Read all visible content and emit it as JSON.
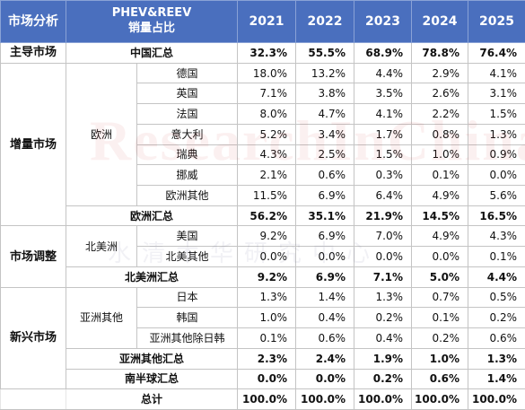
{
  "header": {
    "market_analysis": "市场分析",
    "phev_reev_title": "PHEV&REEV",
    "share_title": "销量占比",
    "years": [
      "2021",
      "2022",
      "2023",
      "2024",
      "2025"
    ]
  },
  "groups": {
    "main": "主导市场",
    "growth": "增量市场",
    "adjust": "市场调整",
    "emerging": "新兴市场"
  },
  "subgroups": {
    "europe": "欧洲",
    "north_america": "北美洲",
    "asia_other": "亚洲其他"
  },
  "rows": {
    "china_total": {
      "label": "中国汇总",
      "values": [
        "32.3%",
        "55.5%",
        "68.9%",
        "78.8%",
        "76.4%"
      ]
    },
    "germany": {
      "label": "德国",
      "values": [
        "18.0%",
        "13.2%",
        "4.4%",
        "2.9%",
        "4.1%"
      ]
    },
    "uk": {
      "label": "英国",
      "values": [
        "7.1%",
        "3.8%",
        "3.5%",
        "2.6%",
        "3.1%"
      ]
    },
    "france": {
      "label": "法国",
      "values": [
        "8.0%",
        "4.7%",
        "4.1%",
        "2.2%",
        "1.5%"
      ]
    },
    "italy": {
      "label": "意大利",
      "values": [
        "5.2%",
        "3.4%",
        "1.7%",
        "0.8%",
        "1.3%"
      ]
    },
    "sweden": {
      "label": "瑞典",
      "values": [
        "4.3%",
        "2.5%",
        "1.5%",
        "1.0%",
        "0.9%"
      ]
    },
    "norway": {
      "label": "挪威",
      "values": [
        "2.1%",
        "0.6%",
        "0.3%",
        "0.1%",
        "0.0%"
      ]
    },
    "europe_other": {
      "label": "欧洲其他",
      "values": [
        "11.5%",
        "6.9%",
        "6.4%",
        "4.9%",
        "5.6%"
      ]
    },
    "europe_total": {
      "label": "欧洲汇总",
      "values": [
        "56.2%",
        "35.1%",
        "21.9%",
        "14.5%",
        "16.5%"
      ]
    },
    "usa": {
      "label": "美国",
      "values": [
        "9.2%",
        "6.9%",
        "7.0%",
        "4.9%",
        "4.3%"
      ]
    },
    "na_other": {
      "label": "北美其他",
      "values": [
        "0.0%",
        "0.0%",
        "0.0%",
        "0.0%",
        "0.1%"
      ]
    },
    "na_total": {
      "label": "北美洲汇总",
      "values": [
        "9.2%",
        "6.9%",
        "7.1%",
        "5.0%",
        "4.4%"
      ]
    },
    "japan": {
      "label": "日本",
      "values": [
        "1.3%",
        "1.4%",
        "1.3%",
        "0.7%",
        "0.5%"
      ]
    },
    "korea": {
      "label": "韩国",
      "values": [
        "1.0%",
        "0.4%",
        "0.2%",
        "0.1%",
        "0.2%"
      ]
    },
    "asia_other_ex_jk": {
      "label": "亚洲其他除日韩",
      "values": [
        "0.1%",
        "0.6%",
        "0.4%",
        "0.2%",
        "0.6%"
      ]
    },
    "asia_other_total": {
      "label": "亚洲其他汇总",
      "values": [
        "2.3%",
        "2.4%",
        "1.9%",
        "1.0%",
        "1.3%"
      ]
    },
    "south_total": {
      "label": "南半球汇总",
      "values": [
        "0.0%",
        "0.0%",
        "0.2%",
        "0.6%",
        "1.4%"
      ]
    },
    "grand_total": {
      "label": "总计",
      "values": [
        "100.0%",
        "100.0%",
        "100.0%",
        "100.0%",
        "100.0%"
      ]
    }
  },
  "watermark": {
    "text": "ResearchInChina",
    "text_cn": "水清木华研究中心"
  },
  "colors": {
    "header_bg": "#4a6fbe",
    "header_text": "#ffffff",
    "border": "#c4c4c4"
  }
}
